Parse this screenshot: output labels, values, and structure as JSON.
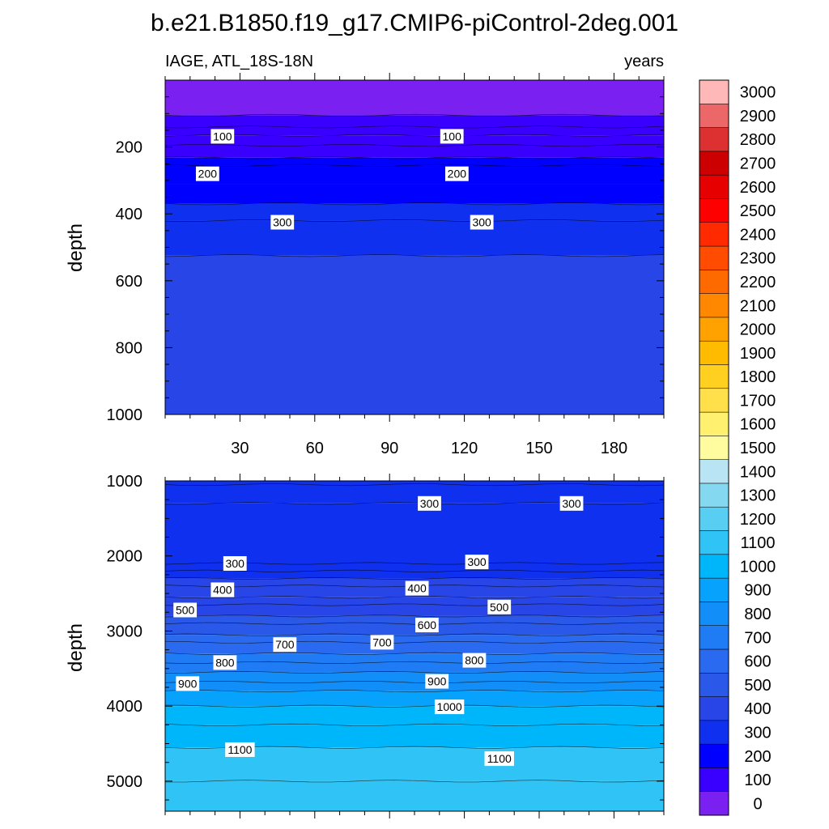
{
  "title": "b.e21.B1850.f19_g17.CMIP6-piControl-2deg.001",
  "chart_data": {
    "type": "heatmap",
    "variable_label": "IAGE, ATL_18S-18N",
    "units_label": "years",
    "ylabel": "depth",
    "xlim": [
      0,
      200
    ],
    "x_ticks": [
      30,
      60,
      90,
      120,
      150,
      180
    ],
    "x_tick_labels": [
      "30",
      "60",
      "90",
      "120",
      "150",
      "180"
    ],
    "colorbar": {
      "levels": [
        0,
        100,
        200,
        300,
        400,
        500,
        600,
        700,
        800,
        900,
        1000,
        1100,
        1200,
        1300,
        1400,
        1500,
        1600,
        1700,
        1800,
        1900,
        2000,
        2100,
        2200,
        2300,
        2400,
        2500,
        2600,
        2700,
        2800,
        2900,
        3000
      ],
      "labels": [
        "0",
        "100",
        "200",
        "300",
        "400",
        "500",
        "600",
        "700",
        "800",
        "900",
        "1000",
        "1100",
        "1200",
        "1300",
        "1400",
        "1500",
        "1600",
        "1700",
        "1800",
        "1900",
        "2000",
        "2100",
        "2200",
        "2300",
        "2400",
        "2500",
        "2600",
        "2700",
        "2800",
        "2900",
        "3000"
      ],
      "colors": [
        "#7a20f0",
        "#5a18ff",
        "#1a00ff",
        "#0010ff",
        "#1030f0",
        "#2845e8",
        "#2a55e8",
        "#2a66f0",
        "#1f78f5",
        "#1488f8",
        "#069cfc",
        "#00b2fa",
        "#12befa",
        "#2ec6f8",
        "#4ccdf5",
        "#62d2f2",
        "#7cd8f0",
        "#92dcee",
        "#a6e0ee",
        "#bae6f0",
        "#ccecf0",
        "#fffca0",
        "#fff390",
        "#ffec70",
        "#ffe555",
        "#ffdd40",
        "#ffcc20",
        "#ffbb00",
        "#ffa400",
        "#ff8c00",
        "#ff7000",
        "#ff5400",
        "#ff3a00",
        "#ff1c00",
        "#ff0000",
        "#ee0000",
        "#cc0000",
        "#d82020",
        "#e05050",
        "#f08080",
        "#ffb8b8"
      ],
      "bins": [
        {
          "lo": 0,
          "hi": 100,
          "color": "#7a20f0"
        },
        {
          "lo": 100,
          "hi": 200,
          "color": "#3a00ff"
        },
        {
          "lo": 200,
          "hi": 300,
          "color": "#0000ff"
        },
        {
          "lo": 300,
          "hi": 400,
          "color": "#1030f0"
        },
        {
          "lo": 400,
          "hi": 500,
          "color": "#2845e8"
        },
        {
          "lo": 500,
          "hi": 600,
          "color": "#2a58e8"
        },
        {
          "lo": 600,
          "hi": 700,
          "color": "#2a6af0"
        },
        {
          "lo": 700,
          "hi": 800,
          "color": "#1f7cf5"
        },
        {
          "lo": 800,
          "hi": 900,
          "color": "#128ef8"
        },
        {
          "lo": 900,
          "hi": 1000,
          "color": "#06a2fc"
        },
        {
          "lo": 1000,
          "hi": 1100,
          "color": "#00b6fa"
        },
        {
          "lo": 1100,
          "hi": 1200,
          "color": "#30c4f6"
        },
        {
          "lo": 1200,
          "hi": 1300,
          "color": "#58cef2"
        },
        {
          "lo": 1300,
          "hi": 1400,
          "color": "#84d8f0"
        },
        {
          "lo": 1400,
          "hi": 1500,
          "color": "#b8e4f4"
        },
        {
          "lo": 1500,
          "hi": 1600,
          "color": "#fffca0"
        },
        {
          "lo": 1600,
          "hi": 1700,
          "color": "#fff070"
        },
        {
          "lo": 1700,
          "hi": 1800,
          "color": "#ffe04a"
        },
        {
          "lo": 1800,
          "hi": 1900,
          "color": "#ffd020"
        },
        {
          "lo": 1900,
          "hi": 2000,
          "color": "#ffbb00"
        },
        {
          "lo": 2000,
          "hi": 2100,
          "color": "#ffa200"
        },
        {
          "lo": 2100,
          "hi": 2200,
          "color": "#ff8800"
        },
        {
          "lo": 2200,
          "hi": 2300,
          "color": "#ff6a00"
        },
        {
          "lo": 2300,
          "hi": 2400,
          "color": "#ff4c00"
        },
        {
          "lo": 2400,
          "hi": 2500,
          "color": "#ff2a00"
        },
        {
          "lo": 2500,
          "hi": 2600,
          "color": "#ff0000"
        },
        {
          "lo": 2600,
          "hi": 2700,
          "color": "#e60000"
        },
        {
          "lo": 2700,
          "hi": 2800,
          "color": "#cc0000"
        },
        {
          "lo": 2800,
          "hi": 2900,
          "color": "#dd3030"
        },
        {
          "lo": 2900,
          "hi": 3000,
          "color": "#ec6868"
        },
        {
          "lo": 3000,
          "hi": 3100,
          "color": "#ffb8b8"
        }
      ]
    },
    "panels": [
      {
        "name": "upper",
        "ylim": [
          0,
          1000
        ],
        "y_ticks": [
          200,
          400,
          600,
          800,
          1000
        ],
        "y_tick_labels": [
          "200",
          "400",
          "600",
          "800",
          "1000"
        ],
        "bands": [
          {
            "from": 0,
            "to": 105,
            "value": 50
          },
          {
            "from": 105,
            "to": 165,
            "value": 150
          },
          {
            "from": 165,
            "to": 232,
            "value": 180
          },
          {
            "from": 232,
            "to": 310,
            "value": 250
          },
          {
            "from": 310,
            "to": 370,
            "value": 280
          },
          {
            "from": 370,
            "to": 420,
            "value": 320
          },
          {
            "from": 420,
            "to": 525,
            "value": 350
          },
          {
            "from": 525,
            "to": 1000,
            "value": 410
          }
        ],
        "contours": [
          105,
          140,
          165,
          195,
          232,
          255,
          370,
          420,
          525
        ],
        "contour_labels": [
          {
            "text": "100",
            "x": 23,
            "y": 168
          },
          {
            "text": "100",
            "x": 115,
            "y": 168
          },
          {
            "text": "200",
            "x": 17,
            "y": 280
          },
          {
            "text": "200",
            "x": 117,
            "y": 280
          },
          {
            "text": "300",
            "x": 47,
            "y": 425
          },
          {
            "text": "300",
            "x": 127,
            "y": 425
          }
        ]
      },
      {
        "name": "lower",
        "ylim": [
          1000,
          5400
        ],
        "y_ticks": [
          1000,
          2000,
          3000,
          4000,
          5000
        ],
        "y_tick_labels": [
          "1000",
          "2000",
          "3000",
          "4000",
          "5000"
        ],
        "bands": [
          {
            "from": 1000,
            "to": 1300,
            "value": 300
          },
          {
            "from": 1300,
            "to": 2100,
            "value": 320
          },
          {
            "from": 2100,
            "to": 2300,
            "value": 380
          },
          {
            "from": 2300,
            "to": 2550,
            "value": 420
          },
          {
            "from": 2550,
            "to": 2800,
            "value": 480
          },
          {
            "from": 2800,
            "to": 3050,
            "value": 560
          },
          {
            "from": 3050,
            "to": 3300,
            "value": 650
          },
          {
            "from": 3300,
            "to": 3550,
            "value": 740
          },
          {
            "from": 3550,
            "to": 3800,
            "value": 830
          },
          {
            "from": 3800,
            "to": 4000,
            "value": 930
          },
          {
            "from": 4000,
            "to": 4250,
            "value": 1000
          },
          {
            "from": 4250,
            "to": 4550,
            "value": 1050
          },
          {
            "from": 4550,
            "to": 5000,
            "value": 1120
          },
          {
            "from": 5000,
            "to": 5400,
            "value": 1180
          }
        ],
        "contours": [
          1050,
          1300,
          2100,
          2200,
          2300,
          2400,
          2550,
          2650,
          2800,
          2900,
          3050,
          3150,
          3300,
          3420,
          3550,
          3680,
          3800,
          4000,
          4250,
          4550,
          5000
        ],
        "contour_labels": [
          {
            "text": "300",
            "x": 106,
            "y": 1300
          },
          {
            "text": "300",
            "x": 163,
            "y": 1300
          },
          {
            "text": "300",
            "x": 28,
            "y": 2100
          },
          {
            "text": "300",
            "x": 125,
            "y": 2080
          },
          {
            "text": "400",
            "x": 23,
            "y": 2450
          },
          {
            "text": "400",
            "x": 101,
            "y": 2430
          },
          {
            "text": "500",
            "x": 8,
            "y": 2720
          },
          {
            "text": "500",
            "x": 134,
            "y": 2680
          },
          {
            "text": "600",
            "x": 105,
            "y": 2920
          },
          {
            "text": "700",
            "x": 48,
            "y": 3180
          },
          {
            "text": "700",
            "x": 87,
            "y": 3150
          },
          {
            "text": "800",
            "x": 24,
            "y": 3420
          },
          {
            "text": "800",
            "x": 124,
            "y": 3390
          },
          {
            "text": "900",
            "x": 9,
            "y": 3700
          },
          {
            "text": "900",
            "x": 109,
            "y": 3670
          },
          {
            "text": "1000",
            "x": 114,
            "y": 4010
          },
          {
            "text": "1100",
            "x": 30,
            "y": 4580
          },
          {
            "text": "1100",
            "x": 134,
            "y": 4700
          }
        ]
      }
    ]
  }
}
